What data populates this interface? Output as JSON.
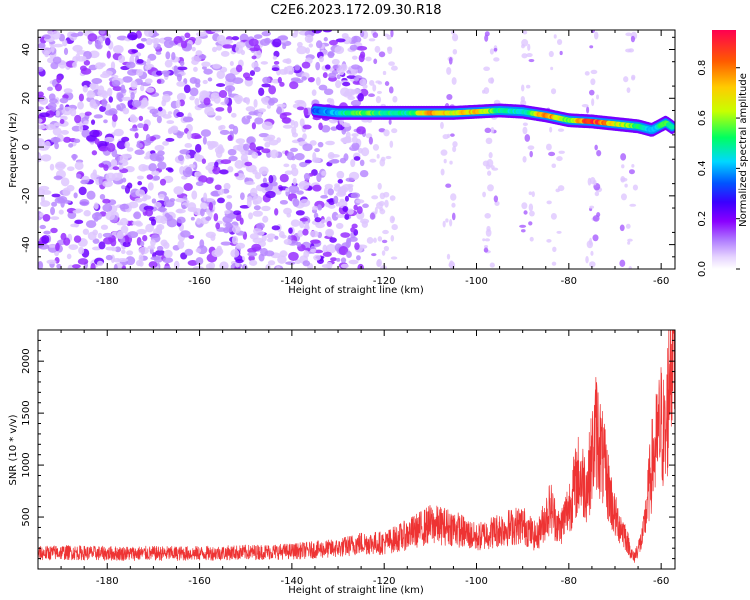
{
  "title": "C2E6.2023.172.09.30.R18",
  "chart_data": [
    {
      "type": "heatmap",
      "title": "",
      "xlabel": "Height of straight line (km)",
      "ylabel": "Frequency (Hz)",
      "xlim": [
        -195,
        -57
      ],
      "ylim": [
        -50,
        48
      ],
      "xticks": [
        -180,
        -160,
        -140,
        -120,
        -100,
        -80,
        -60
      ],
      "yticks": [
        -40,
        -20,
        0,
        20,
        40
      ],
      "colorbar": {
        "label": "Normalized spectral amplitude",
        "range": [
          0,
          0.95
        ],
        "ticks": [
          0.0,
          0.2,
          0.4,
          0.6,
          0.8
        ],
        "colormap": [
          "#ffffff",
          "#b07cff",
          "#8a00ff",
          "#3a00ff",
          "#0055ff",
          "#00d8ff",
          "#00ff60",
          "#c8ff00",
          "#ffcc00",
          "#ff5a00",
          "#ff0050"
        ]
      },
      "ridge": {
        "x": [
          -135,
          -130,
          -125,
          -120,
          -115,
          -110,
          -105,
          -100,
          -95,
          -90,
          -85,
          -80,
          -75,
          -70,
          -65,
          -62,
          -59,
          -57.5
        ],
        "y": [
          15,
          14,
          14,
          14,
          14,
          14,
          14,
          14.5,
          15,
          14.5,
          13,
          11,
          10.5,
          9.5,
          8.5,
          7,
          10,
          8
        ],
        "amplitude": [
          0.35,
          0.45,
          0.6,
          0.55,
          0.5,
          0.8,
          0.7,
          0.75,
          0.55,
          0.45,
          0.85,
          0.6,
          0.95,
          0.7,
          0.55,
          0.4,
          0.6,
          0.5
        ]
      },
      "noise_region": {
        "x_range": [
          -195,
          -128
        ],
        "density": "high"
      }
    },
    {
      "type": "line",
      "title": "",
      "xlabel": "Height of straight line (km)",
      "ylabel": "SNR (10 * v/v)",
      "xlim": [
        -195,
        -57
      ],
      "ylim": [
        0,
        2300
      ],
      "xticks": [
        -180,
        -160,
        -140,
        -120,
        -100,
        -80,
        -60
      ],
      "yticks": [
        500,
        1000,
        1500,
        2000
      ],
      "color": "#ee3333",
      "series": [
        {
          "x": [
            -195,
            -190,
            -180,
            -170,
            -160,
            -150,
            -140,
            -130,
            -125,
            -120,
            -115,
            -110,
            -105,
            -100,
            -95,
            -90,
            -87,
            -84,
            -82,
            -80,
            -78,
            -76,
            -74,
            -72,
            -70,
            -68,
            -66,
            -64,
            -62,
            -60,
            -59,
            -58,
            -57.5
          ],
          "y": [
            150,
            160,
            150,
            150,
            150,
            160,
            170,
            200,
            250,
            250,
            330,
            430,
            400,
            300,
            380,
            430,
            300,
            600,
            380,
            600,
            900,
            800,
            1350,
            900,
            500,
            350,
            100,
            300,
            1000,
            1400,
            1200,
            2100,
            2300
          ]
        }
      ]
    }
  ]
}
